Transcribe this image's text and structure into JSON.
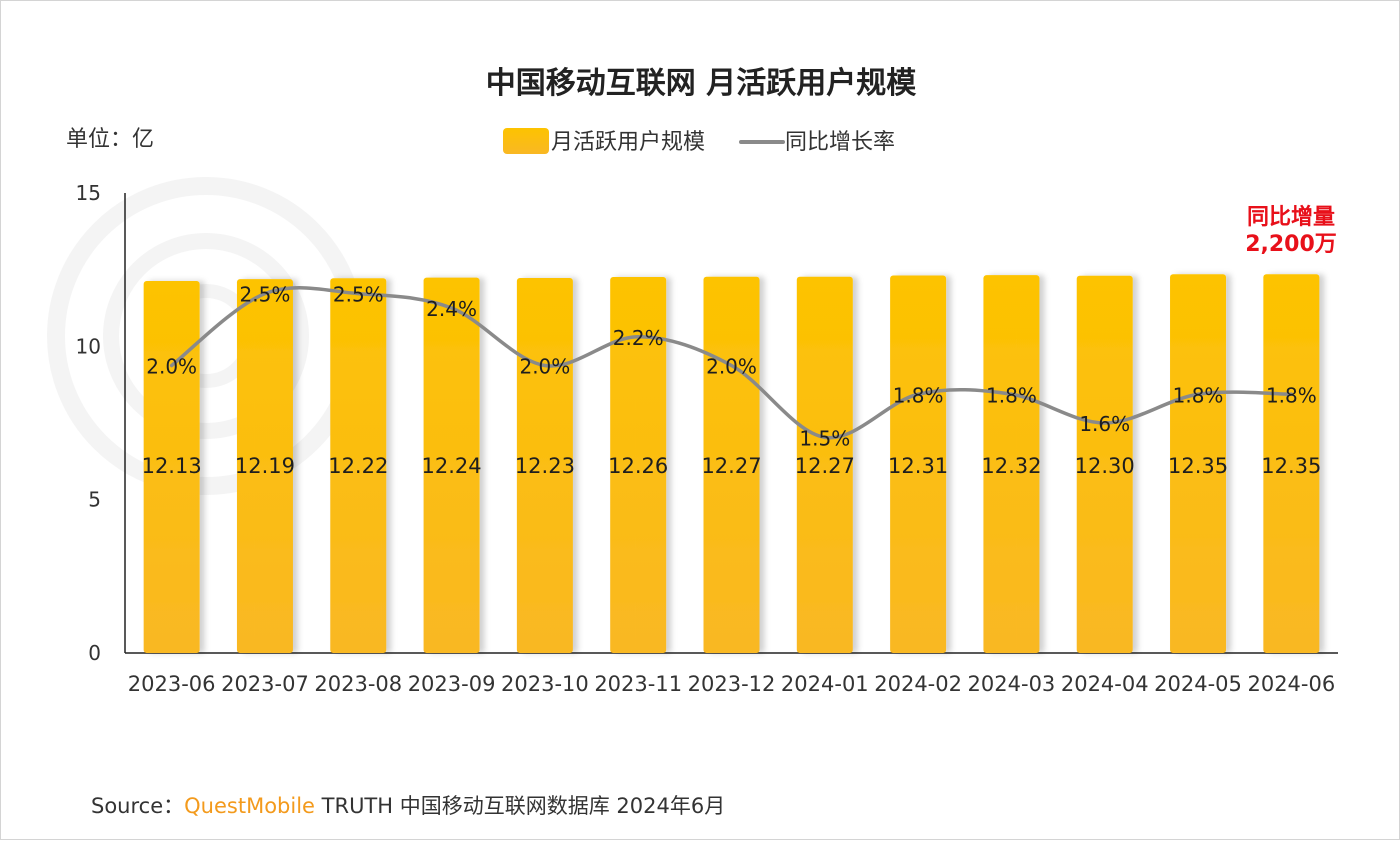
{
  "chart_data": {
    "type": "bar",
    "title": "中国移动互联网 月活跃用户规模",
    "unit_label": "单位：亿",
    "categories": [
      "2023-06",
      "2023-07",
      "2023-08",
      "2023-09",
      "2023-10",
      "2023-11",
      "2023-12",
      "2024-01",
      "2024-02",
      "2024-03",
      "2024-04",
      "2024-05",
      "2024-06"
    ],
    "series": [
      {
        "name": "月活跃用户规模",
        "type": "bar",
        "axis": "left",
        "values": [
          12.13,
          12.19,
          12.22,
          12.24,
          12.23,
          12.26,
          12.27,
          12.27,
          12.31,
          12.32,
          12.3,
          12.35,
          12.35
        ],
        "labels": [
          "12.13",
          "12.19",
          "12.22",
          "12.24",
          "12.23",
          "12.26",
          "12.27",
          "12.27",
          "12.31",
          "12.32",
          "12.30",
          "12.35",
          "12.35"
        ],
        "color": "#FDC300",
        "color_bottom": "#F9B824"
      },
      {
        "name": "同比增长率",
        "type": "line",
        "axis": "hidden-secondary",
        "values": [
          2.0,
          2.5,
          2.5,
          2.4,
          2.0,
          2.2,
          2.0,
          1.5,
          1.8,
          1.8,
          1.6,
          1.8,
          1.8
        ],
        "labels": [
          "2.0%",
          "2.5%",
          "2.5%",
          "2.4%",
          "2.0%",
          "2.2%",
          "2.0%",
          "1.5%",
          "1.8%",
          "1.8%",
          "1.6%",
          "1.8%",
          "1.8%"
        ],
        "color": "#8A8A8A"
      }
    ],
    "y_axis": {
      "min": 0,
      "max": 15,
      "ticks": [
        "0",
        "5",
        "10",
        "15"
      ]
    },
    "grid": false,
    "legend_position": "top-center",
    "annotation": {
      "line1": "同比增量",
      "line2": "2,200万",
      "color": "#E8101A"
    }
  },
  "source": {
    "prefix": "Source：",
    "brand": "QuestMobile",
    "rest": " TRUTH 中国移动互联网数据库 2024年6月"
  }
}
